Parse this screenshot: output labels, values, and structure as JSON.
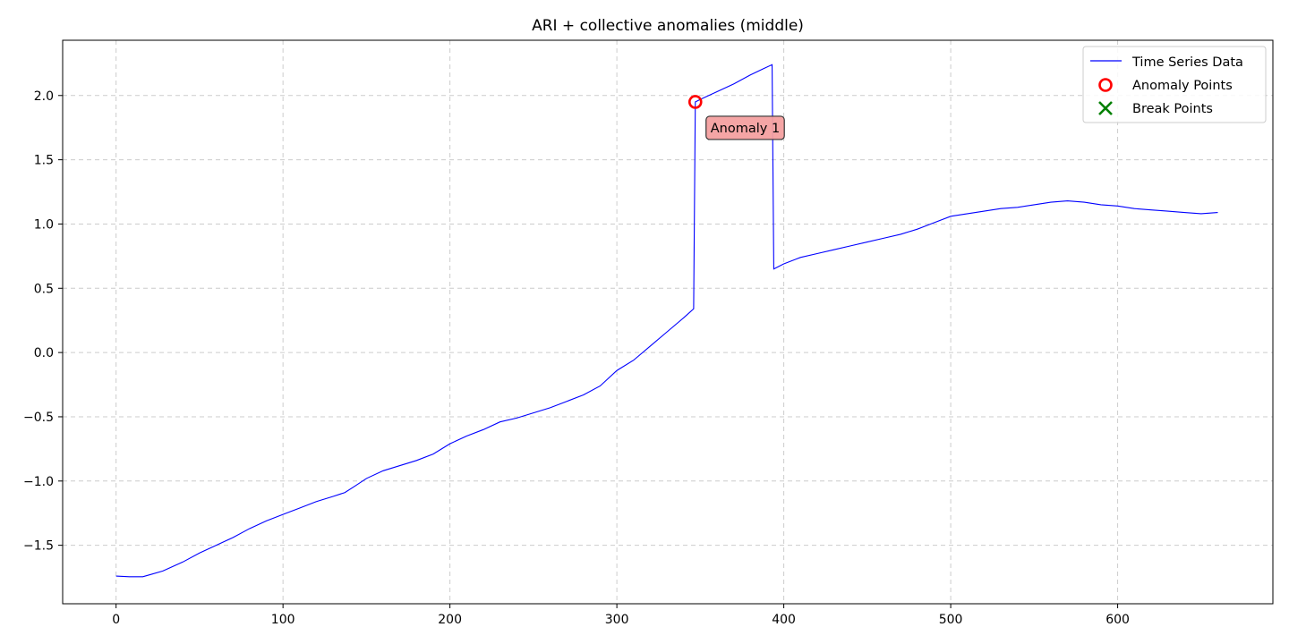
{
  "chart_data": {
    "type": "line",
    "title": "ARI + collective anomalies (middle)",
    "xlabel": "",
    "ylabel": "",
    "xlim": [
      -32,
      693
    ],
    "ylim": [
      -1.955,
      2.43
    ],
    "x_ticks": [
      0,
      100,
      200,
      300,
      400,
      500,
      600
    ],
    "x_tick_labels": [
      "0",
      "100",
      "200",
      "300",
      "400",
      "500",
      "600"
    ],
    "y_ticks": [
      -1.5,
      -1.0,
      -0.5,
      0.0,
      0.5,
      1.0,
      1.5,
      2.0
    ],
    "y_tick_labels": [
      "−1.5",
      "−1.0",
      "−0.5",
      "0.0",
      "0.5",
      "1.0",
      "1.5",
      "2.0"
    ],
    "grid": true,
    "legend_position": "top-right",
    "series": [
      {
        "name": "Time Series Data",
        "color": "#0000ff",
        "points": [
          [
            0,
            -1.74
          ],
          [
            8,
            -1.745
          ],
          [
            16,
            -1.745
          ],
          [
            20,
            -1.73
          ],
          [
            28,
            -1.7
          ],
          [
            40,
            -1.63
          ],
          [
            50,
            -1.56
          ],
          [
            60,
            -1.5
          ],
          [
            70,
            -1.44
          ],
          [
            80,
            -1.37
          ],
          [
            90,
            -1.31
          ],
          [
            100,
            -1.26
          ],
          [
            110,
            -1.21
          ],
          [
            120,
            -1.16
          ],
          [
            130,
            -1.12
          ],
          [
            137,
            -1.09
          ],
          [
            143,
            -1.04
          ],
          [
            150,
            -0.98
          ],
          [
            160,
            -0.92
          ],
          [
            170,
            -0.88
          ],
          [
            180,
            -0.84
          ],
          [
            190,
            -0.79
          ],
          [
            200,
            -0.71
          ],
          [
            210,
            -0.65
          ],
          [
            220,
            -0.6
          ],
          [
            230,
            -0.54
          ],
          [
            240,
            -0.51
          ],
          [
            250,
            -0.47
          ],
          [
            260,
            -0.43
          ],
          [
            270,
            -0.38
          ],
          [
            280,
            -0.33
          ],
          [
            290,
            -0.26
          ],
          [
            300,
            -0.14
          ],
          [
            310,
            -0.06
          ],
          [
            320,
            0.05
          ],
          [
            330,
            0.16
          ],
          [
            340,
            0.27
          ],
          [
            346,
            0.34
          ],
          [
            347,
            1.95
          ],
          [
            350,
            1.97
          ],
          [
            360,
            2.03
          ],
          [
            370,
            2.09
          ],
          [
            380,
            2.16
          ],
          [
            388,
            2.21
          ],
          [
            393,
            2.24
          ],
          [
            394,
            0.65
          ],
          [
            400,
            0.69
          ],
          [
            410,
            0.74
          ],
          [
            420,
            0.77
          ],
          [
            430,
            0.8
          ],
          [
            440,
            0.83
          ],
          [
            450,
            0.86
          ],
          [
            460,
            0.89
          ],
          [
            470,
            0.92
          ],
          [
            480,
            0.96
          ],
          [
            490,
            1.01
          ],
          [
            500,
            1.06
          ],
          [
            510,
            1.08
          ],
          [
            520,
            1.1
          ],
          [
            530,
            1.12
          ],
          [
            540,
            1.13
          ],
          [
            550,
            1.15
          ],
          [
            560,
            1.17
          ],
          [
            570,
            1.18
          ],
          [
            580,
            1.17
          ],
          [
            590,
            1.15
          ],
          [
            600,
            1.14
          ],
          [
            610,
            1.12
          ],
          [
            620,
            1.11
          ],
          [
            630,
            1.1
          ],
          [
            640,
            1.09
          ],
          [
            650,
            1.08
          ],
          [
            660,
            1.09
          ]
        ]
      },
      {
        "name": "Anomaly Points",
        "color": "#ff0000",
        "marker": "open-circle",
        "points": [
          [
            347,
            1.95
          ]
        ]
      },
      {
        "name": "Break Points",
        "color": "#008000",
        "marker": "x",
        "points": []
      }
    ],
    "annotations": [
      {
        "text": "Anomaly 1",
        "x": 347,
        "y": 1.95,
        "background": "#f4a0a0"
      }
    ]
  }
}
